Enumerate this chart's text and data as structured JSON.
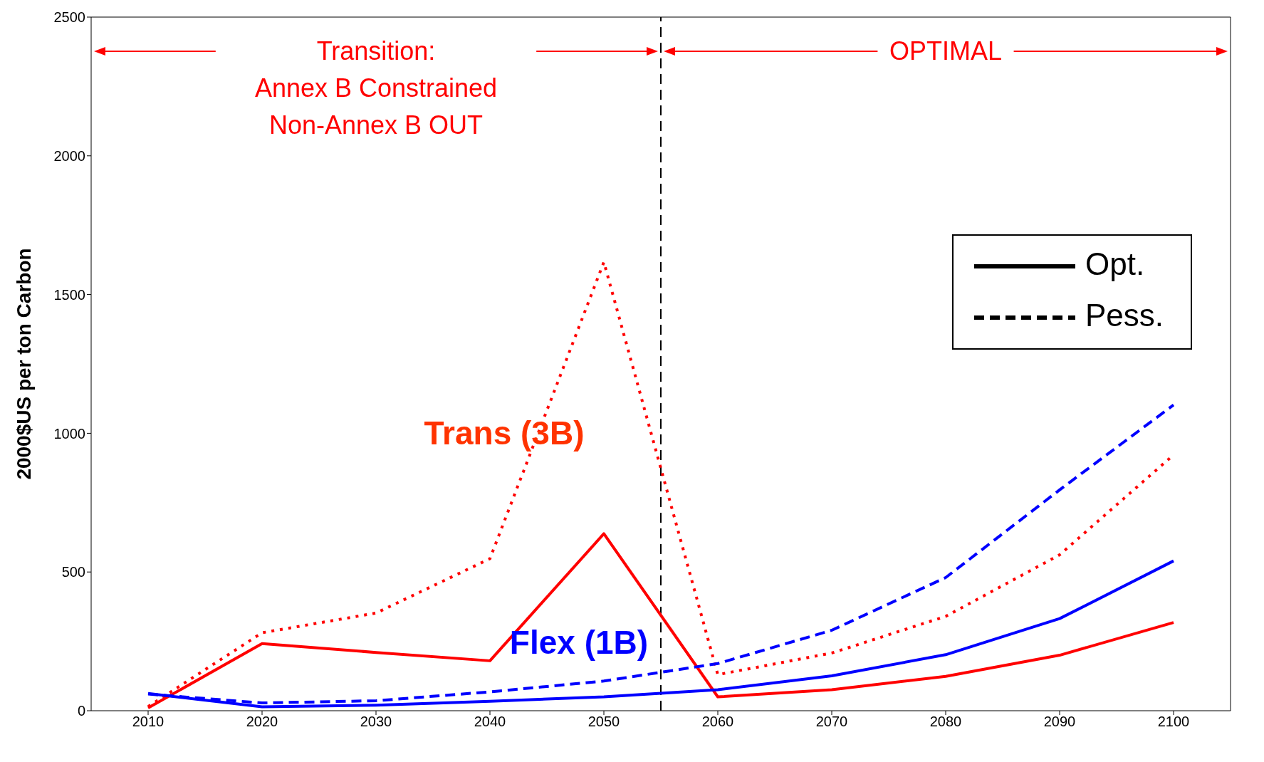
{
  "chart_data": {
    "type": "line",
    "ylabel": "2000$US per ton Carbon",
    "x": [
      2010,
      2020,
      2030,
      2040,
      2050,
      2060,
      2070,
      2080,
      2090,
      2100
    ],
    "xlim": [
      2005,
      2105
    ],
    "xticks": [
      2010,
      2020,
      2030,
      2040,
      2050,
      2060,
      2070,
      2080,
      2090,
      2100
    ],
    "ylim": [
      0,
      2500
    ],
    "yticks": [
      0,
      500,
      1000,
      1500,
      2000,
      2500
    ],
    "marker": "none",
    "series": [
      {
        "color": "#ff0000",
        "line_style": "solid",
        "values": [
          10,
          242,
          210,
          180,
          638,
          50,
          76,
          124,
          200,
          318
        ]
      },
      {
        "color": "#ff0000",
        "line_style": "dotted",
        "values": [
          15,
          281,
          352,
          548,
          1617,
          130,
          208,
          340,
          562,
          922
        ]
      },
      {
        "color": "#0000ff",
        "line_style": "solid",
        "values": [
          62,
          14,
          20,
          34,
          50,
          76,
          126,
          202,
          332,
          540
        ]
      },
      {
        "color": "#0000ff",
        "line_style": "dashed",
        "values": [
          60,
          28,
          36,
          68,
          107,
          170,
          290,
          480,
          796,
          1102
        ]
      }
    ],
    "ref_lines": [
      {
        "axis": "x",
        "value": 2055,
        "color": "#000000",
        "line_style": "dashed"
      }
    ],
    "annotations": [
      "Transition:\nAnnex B Constrained\nNon-Annex B OUT",
      "OPTIMAL",
      "Trans (3B)",
      "Flex (1B)",
      "Opt.",
      "Pess."
    ]
  }
}
